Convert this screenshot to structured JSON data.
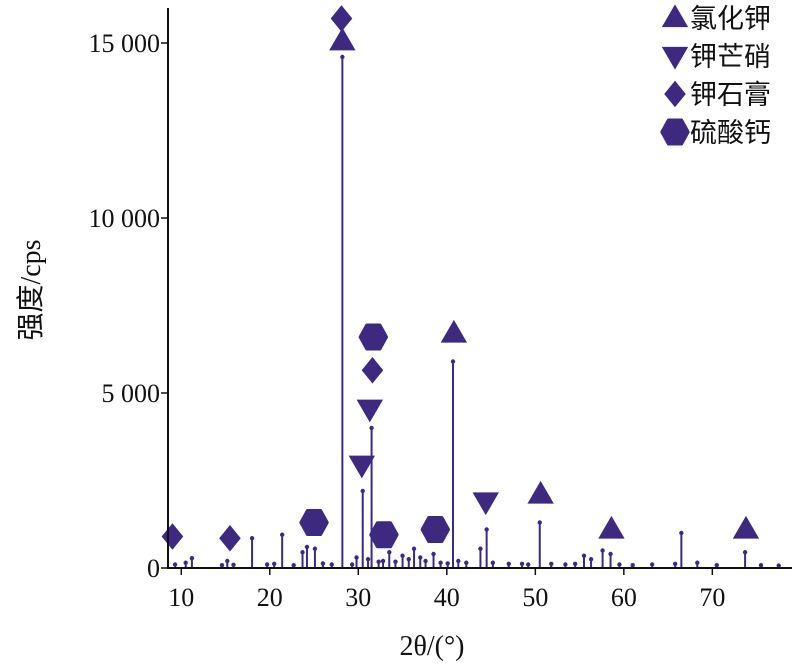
{
  "chart_data": {
    "type": "line",
    "xlabel": "2θ/(°)",
    "ylabel": "强度/cps",
    "xlim": [
      8.5,
      79
    ],
    "ylim": [
      0,
      16000
    ],
    "x_ticks": [
      10,
      20,
      30,
      40,
      50,
      60,
      70
    ],
    "x_tick_labels": [
      "10",
      "20",
      "30",
      "40",
      "50",
      "60",
      "70"
    ],
    "y_ticks": [
      0,
      5000,
      10000,
      15000
    ],
    "y_tick_labels": [
      "0",
      "5 000",
      "10 000",
      "15 000"
    ],
    "grid": false,
    "legend_position": "top-right",
    "colors": {
      "marker": "#3d2a80",
      "line": "#3d2a80",
      "axis": "#111111"
    },
    "legend": [
      {
        "symbol": "triangle-up",
        "label": "氯化钾"
      },
      {
        "symbol": "triangle-down",
        "label": "钾芒硝"
      },
      {
        "symbol": "diamond",
        "label": "钾石膏"
      },
      {
        "symbol": "hexagon",
        "label": "硫酸钙"
      }
    ],
    "peaks": [
      {
        "x": 9.3,
        "y": 100
      },
      {
        "x": 10.5,
        "y": 150
      },
      {
        "x": 11.2,
        "y": 280
      },
      {
        "x": 14.6,
        "y": 80
      },
      {
        "x": 15.2,
        "y": 200
      },
      {
        "x": 15.9,
        "y": 90
      },
      {
        "x": 18.0,
        "y": 850
      },
      {
        "x": 19.7,
        "y": 100
      },
      {
        "x": 20.5,
        "y": 120
      },
      {
        "x": 21.4,
        "y": 950
      },
      {
        "x": 22.7,
        "y": 80
      },
      {
        "x": 23.7,
        "y": 450
      },
      {
        "x": 24.2,
        "y": 600
      },
      {
        "x": 25.1,
        "y": 550
      },
      {
        "x": 26.0,
        "y": 130
      },
      {
        "x": 27.0,
        "y": 100
      },
      {
        "x": 28.2,
        "y": 14600
      },
      {
        "x": 29.3,
        "y": 100
      },
      {
        "x": 29.8,
        "y": 300
      },
      {
        "x": 30.5,
        "y": 2200
      },
      {
        "x": 31.1,
        "y": 250
      },
      {
        "x": 31.5,
        "y": 4000
      },
      {
        "x": 32.3,
        "y": 180
      },
      {
        "x": 32.8,
        "y": 200
      },
      {
        "x": 33.5,
        "y": 450
      },
      {
        "x": 34.2,
        "y": 180
      },
      {
        "x": 35.0,
        "y": 350
      },
      {
        "x": 35.7,
        "y": 250
      },
      {
        "x": 36.3,
        "y": 550
      },
      {
        "x": 37.0,
        "y": 300
      },
      {
        "x": 37.6,
        "y": 200
      },
      {
        "x": 38.5,
        "y": 400
      },
      {
        "x": 39.3,
        "y": 150
      },
      {
        "x": 40.1,
        "y": 130
      },
      {
        "x": 40.7,
        "y": 5900
      },
      {
        "x": 41.3,
        "y": 200
      },
      {
        "x": 42.2,
        "y": 150
      },
      {
        "x": 43.8,
        "y": 550
      },
      {
        "x": 44.5,
        "y": 1100
      },
      {
        "x": 45.2,
        "y": 150
      },
      {
        "x": 47.0,
        "y": 120
      },
      {
        "x": 48.5,
        "y": 120
      },
      {
        "x": 49.2,
        "y": 100
      },
      {
        "x": 50.5,
        "y": 1300
      },
      {
        "x": 51.8,
        "y": 120
      },
      {
        "x": 53.4,
        "y": 100
      },
      {
        "x": 54.5,
        "y": 120
      },
      {
        "x": 55.5,
        "y": 350
      },
      {
        "x": 56.3,
        "y": 250
      },
      {
        "x": 57.6,
        "y": 500
      },
      {
        "x": 58.5,
        "y": 400
      },
      {
        "x": 59.5,
        "y": 100
      },
      {
        "x": 61.0,
        "y": 80
      },
      {
        "x": 63.2,
        "y": 100
      },
      {
        "x": 65.8,
        "y": 120
      },
      {
        "x": 66.5,
        "y": 1000
      },
      {
        "x": 68.3,
        "y": 150
      },
      {
        "x": 70.5,
        "y": 80
      },
      {
        "x": 73.7,
        "y": 450
      },
      {
        "x": 75.5,
        "y": 80
      },
      {
        "x": 77.5,
        "y": 70
      }
    ],
    "annotations": [
      {
        "symbol": "diamond",
        "x": 9.0,
        "y": 900
      },
      {
        "symbol": "diamond",
        "x": 15.5,
        "y": 850
      },
      {
        "symbol": "hexagon",
        "x": 25.0,
        "y": 1300
      },
      {
        "symbol": "diamond",
        "x": 28.1,
        "y": 15700
      },
      {
        "symbol": "triangle-up",
        "x": 28.2,
        "y": 15050
      },
      {
        "symbol": "triangle-down",
        "x": 30.4,
        "y": 2950
      },
      {
        "symbol": "triangle-down",
        "x": 31.3,
        "y": 4550
      },
      {
        "symbol": "diamond",
        "x": 31.6,
        "y": 5650
      },
      {
        "symbol": "hexagon",
        "x": 31.7,
        "y": 6600
      },
      {
        "symbol": "hexagon",
        "x": 32.9,
        "y": 950
      },
      {
        "symbol": "hexagon",
        "x": 38.7,
        "y": 1100
      },
      {
        "symbol": "triangle-up",
        "x": 40.8,
        "y": 6700
      },
      {
        "symbol": "triangle-down",
        "x": 44.4,
        "y": 1900
      },
      {
        "symbol": "triangle-up",
        "x": 50.6,
        "y": 2100
      },
      {
        "symbol": "triangle-up",
        "x": 58.6,
        "y": 1100
      },
      {
        "symbol": "triangle-up",
        "x": 73.8,
        "y": 1100
      }
    ]
  }
}
